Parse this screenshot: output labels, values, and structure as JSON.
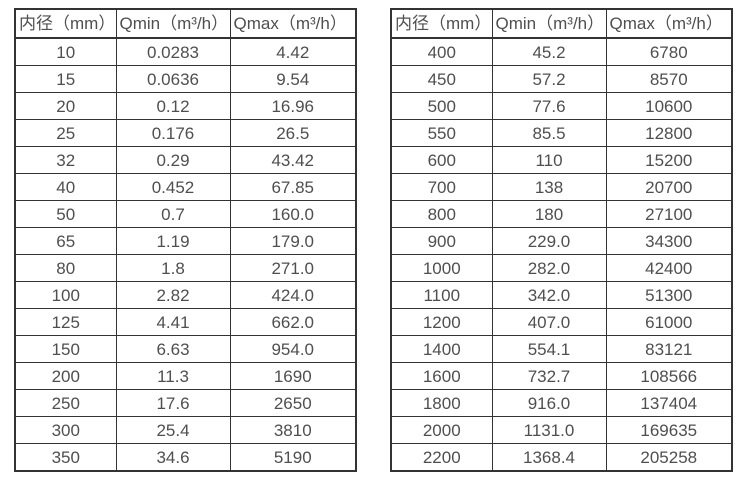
{
  "colors": {
    "background": "#ffffff",
    "border": "#333333",
    "text": "#4f4f4f"
  },
  "table_left": {
    "headers": [
      "内径（mm）",
      "Qmin（m³/h）",
      "Qmax（m³/h）"
    ],
    "rows": [
      [
        "10",
        "0.0283",
        "4.42"
      ],
      [
        "15",
        "0.0636",
        "9.54"
      ],
      [
        "20",
        "0.12",
        "16.96"
      ],
      [
        "25",
        "0.176",
        "26.5"
      ],
      [
        "32",
        "0.29",
        "43.42"
      ],
      [
        "40",
        "0.452",
        "67.85"
      ],
      [
        "50",
        "0.7",
        "160.0"
      ],
      [
        "65",
        "1.19",
        "179.0"
      ],
      [
        "80",
        "1.8",
        "271.0"
      ],
      [
        "100",
        "2.82",
        "424.0"
      ],
      [
        "125",
        "4.41",
        "662.0"
      ],
      [
        "150",
        "6.63",
        "954.0"
      ],
      [
        "200",
        "11.3",
        "1690"
      ],
      [
        "250",
        "17.6",
        "2650"
      ],
      [
        "300",
        "25.4",
        "3810"
      ],
      [
        "350",
        "34.6",
        "5190"
      ]
    ]
  },
  "table_right": {
    "headers": [
      "内径（mm）",
      "Qmin（m³/h）",
      "Qmax（m³/h）"
    ],
    "rows": [
      [
        "400",
        "45.2",
        "6780"
      ],
      [
        "450",
        "57.2",
        "8570"
      ],
      [
        "500",
        "77.6",
        "10600"
      ],
      [
        "550",
        "85.5",
        "12800"
      ],
      [
        "600",
        "110",
        "15200"
      ],
      [
        "700",
        "138",
        "20700"
      ],
      [
        "800",
        "180",
        "27100"
      ],
      [
        "900",
        "229.0",
        "34300"
      ],
      [
        "1000",
        "282.0",
        "42400"
      ],
      [
        "1100",
        "342.0",
        "51300"
      ],
      [
        "1200",
        "407.0",
        "61000"
      ],
      [
        "1400",
        "554.1",
        "83121"
      ],
      [
        "1600",
        "732.7",
        "108566"
      ],
      [
        "1800",
        "916.0",
        "137404"
      ],
      [
        "2000",
        "1131.0",
        "169635"
      ],
      [
        "2200",
        "1368.4",
        "205258"
      ]
    ]
  }
}
